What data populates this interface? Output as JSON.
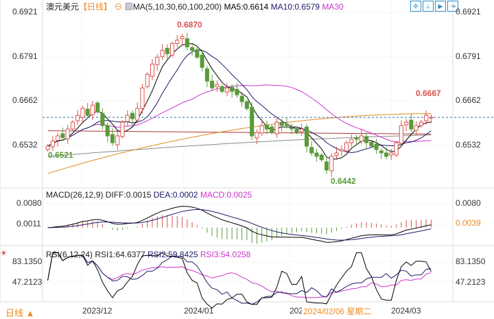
{
  "header": {
    "symbol": "澳元美元",
    "period": "【日线】",
    "ma_label": "MA(5,10,30,60,100,200)",
    "ma5": "MA5:0.6614",
    "ma10": "MA10:0.6579",
    "ma30": "MA30"
  },
  "macd_header": {
    "label": "MACD(26,12,9)",
    "diff": "DIFF:0.0015",
    "dea": "DEA:0.0002",
    "macd": "MACD:0.0025"
  },
  "rsi_header": {
    "label": "RSI(6,12,24)",
    "rsi1": "RSI1:64.6377",
    "rsi2": "RSI2:59.8425",
    "rsi3": "RSI3:54.0258"
  },
  "footer": {
    "period_button": "日线 ▲",
    "hover_date": "2024/02/06 星期二"
  },
  "toolbar": [
    "crosshair-icon",
    "zoom-in-icon",
    "zoom-out-icon",
    "scroll-end-icon"
  ],
  "colors": {
    "up": "#d9534f",
    "down": "#5a9a3a",
    "ma5": "#000000",
    "ma10": "#1a1a66",
    "ma30": "#cc33cc",
    "ma60": "#e08a1e",
    "ma100": "#aa3333",
    "ma200": "#888888",
    "accent": "#f08a24"
  },
  "chart_data": [
    {
      "type": "candlestick",
      "title": "澳元美元",
      "y_ticks": [
        "0.6921",
        "0.6791",
        "0.6662",
        "0.6532"
      ],
      "ylim": [
        0.6442,
        0.6921
      ],
      "x_ticks": [
        "2023/12",
        "2024/01",
        "202",
        "2024/03"
      ],
      "close": [
        0.653,
        0.6545,
        0.656,
        0.6555,
        0.658,
        0.66,
        0.662,
        0.664,
        0.662,
        0.665,
        0.663,
        0.659,
        0.656,
        0.654,
        0.656,
        0.66,
        0.662,
        0.661,
        0.664,
        0.67,
        0.674,
        0.677,
        0.679,
        0.681,
        0.68,
        0.683,
        0.684,
        0.685,
        0.682,
        0.681,
        0.679,
        0.676,
        0.672,
        0.67,
        0.671,
        0.669,
        0.67,
        0.669,
        0.668,
        0.666,
        0.664,
        0.656,
        0.657,
        0.659,
        0.658,
        0.657,
        0.66,
        0.659,
        0.659,
        0.658,
        0.657,
        0.658,
        0.653,
        0.651,
        0.65,
        0.649,
        0.646,
        0.65,
        0.651,
        0.652,
        0.654,
        0.655,
        0.655,
        0.656,
        0.654,
        0.653,
        0.652,
        0.651,
        0.65,
        0.651,
        0.654,
        0.659,
        0.66,
        0.658,
        0.659,
        0.66,
        0.662,
        0.6614
      ],
      "annotations": [
        {
          "label": "0.6870",
          "value": 0.687
        },
        {
          "label": "0.6667",
          "value": 0.6667
        },
        {
          "label": "0.6521",
          "value": 0.6521
        },
        {
          "label": "0.6442",
          "value": 0.6442
        }
      ],
      "last_price": 0.6614
    },
    {
      "type": "macd",
      "y_ticks": [
        "0.0080",
        "0.0011"
      ],
      "right_labels": [
        "0.0080",
        "0.0039"
      ]
    },
    {
      "type": "rsi",
      "y_ticks": [
        "83.1350",
        "47.2123"
      ],
      "right_labels": [
        "83.1350",
        "47.2123"
      ]
    }
  ]
}
